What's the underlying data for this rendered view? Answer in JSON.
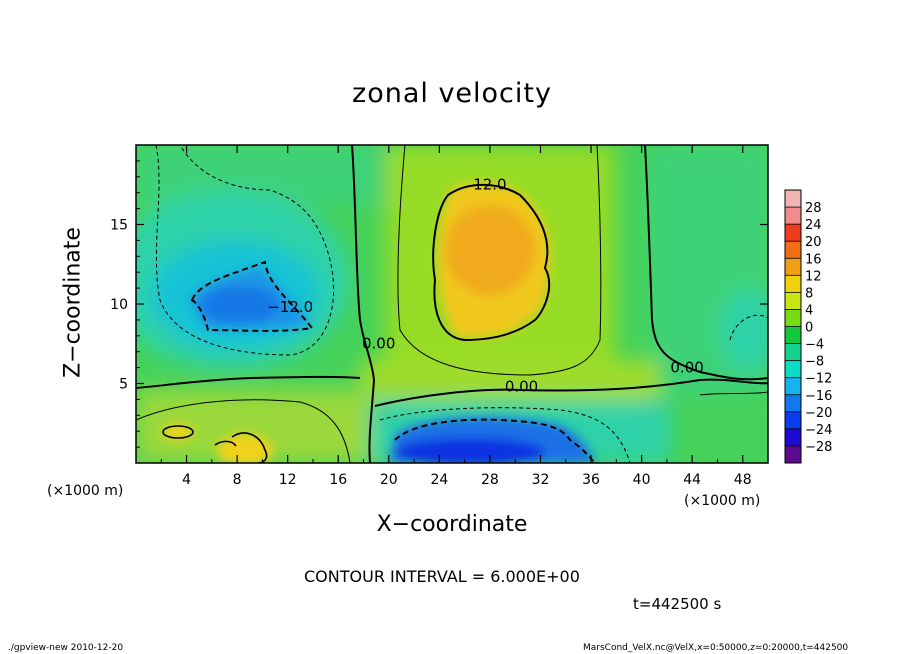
{
  "chart_data": {
    "type": "heatmap",
    "title": "zonal velocity",
    "xlabel": "X−coordinate",
    "ylabel": "Z−coordinate",
    "x_scale_label_left": "(×1000 m)",
    "x_scale_label_right": "(×1000 m)",
    "xlim": [
      0,
      50
    ],
    "ylim": [
      0,
      20
    ],
    "x_ticks": [
      4,
      8,
      12,
      16,
      20,
      24,
      28,
      32,
      36,
      40,
      44,
      48
    ],
    "y_ticks": [
      5,
      10,
      15
    ],
    "x_tick_labels": [
      "4",
      "8",
      "12",
      "16",
      "20",
      "24",
      "28",
      "32",
      "36",
      "40",
      "44",
      "48"
    ],
    "y_tick_labels": [
      "5",
      "10",
      "15"
    ],
    "colorbar": {
      "levels": [
        -28,
        -24,
        -20,
        -16,
        -12,
        -8,
        -4,
        0,
        4,
        8,
        12,
        16,
        20,
        24,
        28
      ],
      "labels": [
        "−28",
        "−24",
        "−20",
        "−16",
        "−12",
        "−8",
        "−4",
        "0",
        "4",
        "8",
        "12",
        "16",
        "20",
        "24",
        "28"
      ],
      "colors": [
        "#5a0a8c",
        "#1e0ad2",
        "#0a3cf0",
        "#1478f0",
        "#14b4f0",
        "#0adcc8",
        "#14d28c",
        "#14c83c",
        "#78dc14",
        "#c8e614",
        "#f0d20a",
        "#f0a014",
        "#f06e14",
        "#f03c1e",
        "#f08c8c",
        "#f0b4b4"
      ]
    },
    "contour_labels": [
      {
        "text": "12.0",
        "x": 28,
        "y": 17.2
      },
      {
        "text": "−12.0",
        "x": 12.2,
        "y": 9.5
      },
      {
        "text": "0.00",
        "x": 19.2,
        "y": 7.2
      },
      {
        "text": "0.00",
        "x": 30.5,
        "y": 4.5
      },
      {
        "text": "0.00",
        "x": 43.6,
        "y": 5.7
      }
    ],
    "features": [
      {
        "name": "positive maximum",
        "x": 28,
        "z": 13,
        "value": 14
      },
      {
        "name": "negative minimum upper-left",
        "x": 8,
        "z": 10.5,
        "value": -14
      },
      {
        "name": "negative minimum bottom",
        "x": 28,
        "z": 1,
        "value": -22
      }
    ]
  },
  "footer": {
    "contour_interval": "CONTOUR INTERVAL = 6.000E+00",
    "time": "t=442500 s",
    "left": "./gpview-new   2010-12-20",
    "right": "MarsCond_VelX.nc@VelX,x=0:50000,z=0:20000,t=442500"
  }
}
